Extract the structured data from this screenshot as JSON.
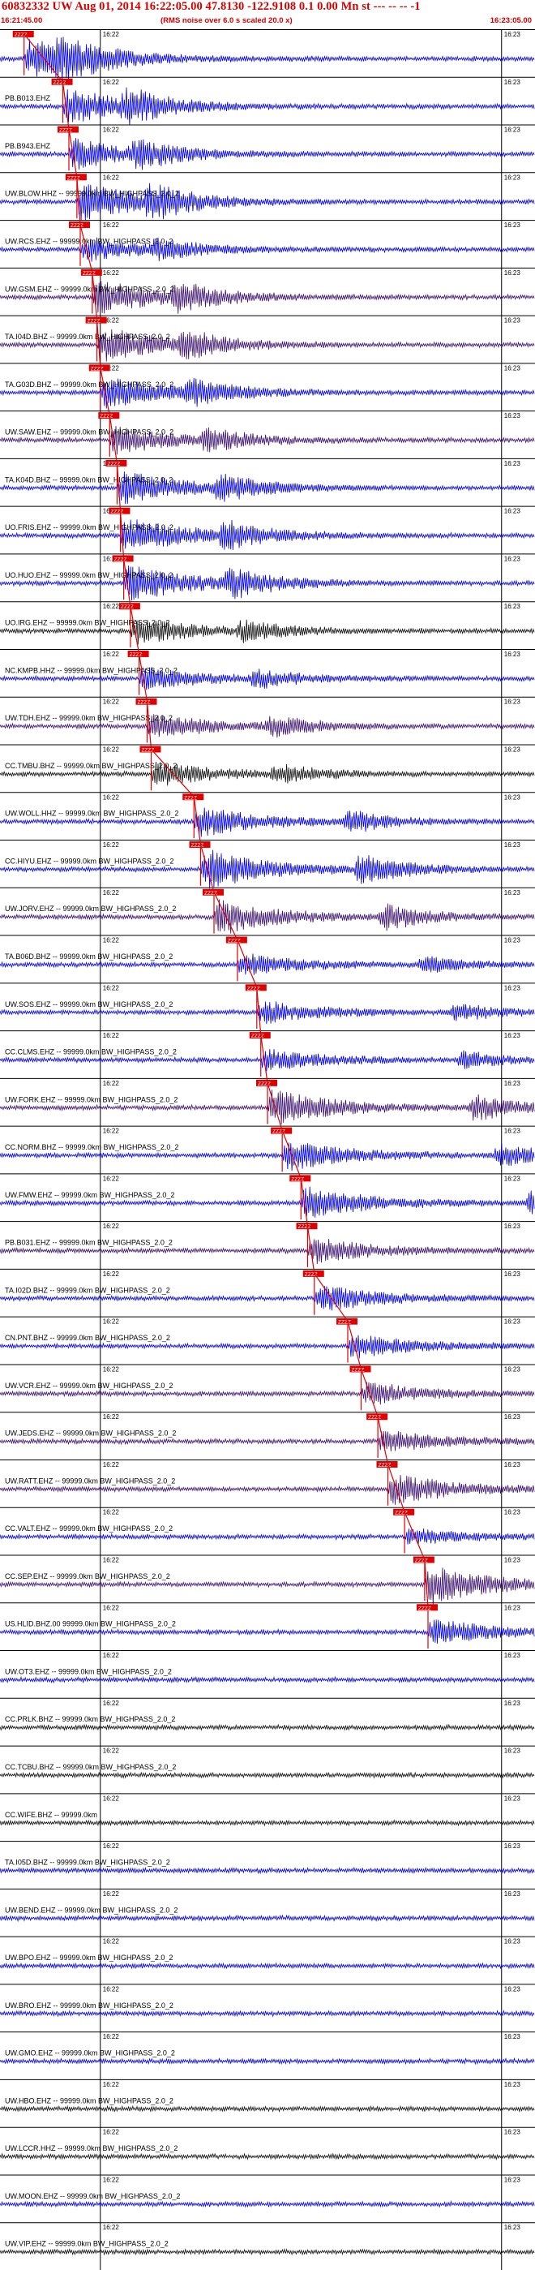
{
  "header": {
    "title": "60832332 UW Aug 01, 2014 16:22:05.00   47.8130 -122.9108  0.1 0.00 Mn st --- -- --  -1",
    "rms_note": "(RMS noise over 6.0 s scaled 20.0 x)",
    "start_time": "16:21:45.00",
    "end_time": "16:23:05.00"
  },
  "colors": {
    "blue_trace": "#0000e6",
    "purple_trace": "#3a1070",
    "black_trace": "#101010",
    "pick_marker": "#e00000",
    "header_text": "#d40000",
    "minute_line": "#000000"
  },
  "chart_data": {
    "type": "seismogram-record-section",
    "time_start": "16:21:45.00",
    "time_end": "16:23:05.00",
    "minute_marks": [
      "16:22",
      "16:23"
    ],
    "pick_label_text": "ZZZZ",
    "traces": [
      {
        "label": "",
        "color": "blue",
        "pick_time_s": 3.6,
        "amp": 0.95
      },
      {
        "label": "PB.B013.EHZ",
        "color": "blue",
        "pick_time_s": 9.4,
        "amp": 0.85
      },
      {
        "label": "PB.B943.EHZ",
        "color": "blue",
        "pick_time_s": 10.3,
        "amp": 0.7
      },
      {
        "label": "UW.BLOW.HHZ -- 99999.0km BW_HIGHPASS_2.0_2",
        "color": "blue",
        "pick_time_s": 11.5,
        "amp": 0.9
      },
      {
        "label": "UW.RCS.EHZ -- 99999.0km BW_HIGHPASS_2.0_2",
        "color": "blue",
        "pick_time_s": 12.0,
        "amp": 0.55
      },
      {
        "label": "UW.GSM.EHZ -- 99999.0km BW_HIGHPASS_2.0_2",
        "color": "purple",
        "pick_time_s": 13.8,
        "amp": 0.8
      },
      {
        "label": "TA.I04D.BHZ -- 99999.0km BW_HIGHPASS_2.0_2",
        "color": "purple",
        "pick_time_s": 14.5,
        "amp": 0.8
      },
      {
        "label": "TA.G03D.BHZ -- 99999.0km BW_HIGHPASS_2.0_2",
        "color": "blue",
        "pick_time_s": 15.0,
        "amp": 0.75
      },
      {
        "label": "UW.SAW.EHZ -- 99999.0km BW_HIGHPASS_2.0_2",
        "color": "purple",
        "pick_time_s": 16.4,
        "amp": 0.65
      },
      {
        "label": "TA.K04D.BHZ -- 99999.0km BW_HIGHPASS_2.0_2",
        "color": "blue",
        "pick_time_s": 17.5,
        "amp": 0.8
      },
      {
        "label": "UO.FRIS.EHZ -- 99999.0km BW_HIGHPASS_2.0_2",
        "color": "blue",
        "pick_time_s": 18.0,
        "amp": 0.85
      },
      {
        "label": "UO.HUO.EHZ -- 99999.0km BW_HIGHPASS_2.0_2",
        "color": "blue",
        "pick_time_s": 18.5,
        "amp": 0.9
      },
      {
        "label": "UO.IRG.EHZ -- 99999.0km BW_HIGHPASS_2.0_2",
        "color": "black",
        "pick_time_s": 19.5,
        "amp": 0.6
      },
      {
        "label": "NC.KMPB.HHZ -- 99999.0km BW_HIGHPASS_2.0_2",
        "color": "blue",
        "pick_time_s": 20.8,
        "amp": 0.5
      },
      {
        "label": "UW.TDH.EHZ -- 99999.0km BW_HIGHPASS_2.0_2",
        "color": "purple",
        "pick_time_s": 22.0,
        "amp": 0.6
      },
      {
        "label": "CC.TMBU.BHZ -- 99999.0km BW_HIGHPASS_2.0_2",
        "color": "black",
        "pick_time_s": 22.6,
        "amp": 0.55
      },
      {
        "label": "UW.WOLL.HHZ -- 99999.0km BW_HIGHPASS_2.0_2",
        "color": "blue",
        "pick_time_s": 29.0,
        "amp": 0.7
      },
      {
        "label": "CC.HIYU.EHZ -- 99999.0km BW_HIGHPASS_2.0_2",
        "color": "blue",
        "pick_time_s": 30.0,
        "amp": 0.95
      },
      {
        "label": "UW.JORV.EHZ -- 99999.0km BW_HIGHPASS_2.0_2",
        "color": "purple",
        "pick_time_s": 32.0,
        "amp": 0.8
      },
      {
        "label": "TA.B06D.BHZ -- 99999.0km BW_HIGHPASS_2.0_2",
        "color": "blue",
        "pick_time_s": 35.5,
        "amp": 0.5
      },
      {
        "label": "UW.SOS.EHZ -- 99999.0km BW_HIGHPASS_2.0_2",
        "color": "blue",
        "pick_time_s": 38.4,
        "amp": 0.5
      },
      {
        "label": "CC.CLMS.EHZ -- 99999.0km BW_HIGHPASS_2.0_2",
        "color": "blue",
        "pick_time_s": 39.0,
        "amp": 0.5
      },
      {
        "label": "UW.FORK.EHZ -- 99999.0km BW_HIGHPASS_2.0_2",
        "color": "purple",
        "pick_time_s": 40.0,
        "amp": 0.85
      },
      {
        "label": "CC.NORM.BHZ -- 99999.0km BW_HIGHPASS_2.0_2",
        "color": "blue",
        "pick_time_s": 42.2,
        "amp": 0.7
      },
      {
        "label": "UW.FMW.EHZ -- 99999.0km BW_HIGHPASS_2.0_2",
        "color": "blue",
        "pick_time_s": 45.0,
        "amp": 0.8
      },
      {
        "label": "PB.B031.EHZ -- 99999.0km BW_HIGHPASS_2.0_2",
        "color": "purple",
        "pick_time_s": 46.0,
        "amp": 0.6
      },
      {
        "label": "TA.I02D.BHZ -- 99999.0km BW_HIGHPASS_2.0_2",
        "color": "blue",
        "pick_time_s": 47.0,
        "amp": 0.6
      },
      {
        "label": "CN.PNT.BHZ -- 99999.0km BW_HIGHPASS_2.0_2",
        "color": "blue",
        "pick_time_s": 52.0,
        "amp": 0.55
      },
      {
        "label": "UW.VCR.EHZ -- 99999.0km BW_HIGHPASS_2.0_2",
        "color": "purple",
        "pick_time_s": 54.0,
        "amp": 0.5
      },
      {
        "label": "UW.JEDS.EHZ -- 99999.0km BW_HIGHPASS_2.0_2",
        "color": "purple",
        "pick_time_s": 56.5,
        "amp": 0.5
      },
      {
        "label": "UW.RATT.EHZ -- 99999.0km BW_HIGHPASS_2.0_2",
        "color": "purple",
        "pick_time_s": 58.0,
        "amp": 0.7
      },
      {
        "label": "CC.VALT.EHZ -- 99999.0km BW_HIGHPASS_2.0_2",
        "color": "blue",
        "pick_time_s": 60.5,
        "amp": 0.35
      },
      {
        "label": "CC.SEP.EHZ -- 99999.0km BW_HIGHPASS_2.0_2",
        "color": "purple",
        "pick_time_s": 63.5,
        "amp": 0.9
      },
      {
        "label": "US.HLID.BHZ.00 99999.0km BW_HIGHPASS_2.0_2",
        "color": "blue",
        "pick_time_s": 64.0,
        "amp": 0.6
      },
      {
        "label": "UW.OT3.EHZ -- 99999.0km BW_HIGHPASS_2.0_2",
        "color": "blue",
        "pick_time_s": null,
        "amp": 0.45
      },
      {
        "label": "CC.PRLK.BHZ -- 99999.0km BW_HIGHPASS_2.0_2",
        "color": "black",
        "pick_time_s": null,
        "amp": 0.3
      },
      {
        "label": "CC.TCBU.BHZ -- 99999.0km BW_HIGHPASS_2.0_2",
        "color": "black",
        "pick_time_s": null,
        "amp": 0.2
      },
      {
        "label": "CC.WIFE.BHZ -- 99999.0km",
        "color": "black",
        "pick_time_s": null,
        "amp": 0.2
      },
      {
        "label": "TA.I05D.BHZ -- 99999.0km BW_HIGHPASS_2.0_2",
        "color": "blue",
        "pick_time_s": null,
        "amp": 0.45
      },
      {
        "label": "UW.BEND.EHZ -- 99999.0km BW_HIGHPASS_2.0_2",
        "color": "blue",
        "pick_time_s": null,
        "amp": 0.5
      },
      {
        "label": "UW.BPO.EHZ -- 99999.0km BW_HIGHPASS_2.0_2",
        "color": "blue",
        "pick_time_s": null,
        "amp": 0.5
      },
      {
        "label": "UW.BRO.EHZ -- 99999.0km BW_HIGHPASS_2.0_2",
        "color": "blue",
        "pick_time_s": null,
        "amp": 0.5
      },
      {
        "label": "UW.GMO.EHZ -- 99999.0km BW_HIGHPASS_2.0_2",
        "color": "blue",
        "pick_time_s": null,
        "amp": 0.5
      },
      {
        "label": "UW.HBO.EHZ -- 99999.0km BW_HIGHPASS_2.0_2",
        "color": "black",
        "pick_time_s": null,
        "amp": 0.35
      },
      {
        "label": "UW.LCCR.HHZ -- 99999.0km BW_HIGHPASS_2.0_2",
        "color": "black",
        "pick_time_s": null,
        "amp": 0.3
      },
      {
        "label": "UW.MOON.EHZ -- 99999.0km BW_HIGHPASS_2.0_2",
        "color": "blue",
        "pick_time_s": null,
        "amp": 0.45
      },
      {
        "label": "UW.VIP.EHZ -- 99999.0km BW_HIGHPASS_2.0_2",
        "color": "black",
        "pick_time_s": null,
        "amp": 0.25
      }
    ]
  }
}
